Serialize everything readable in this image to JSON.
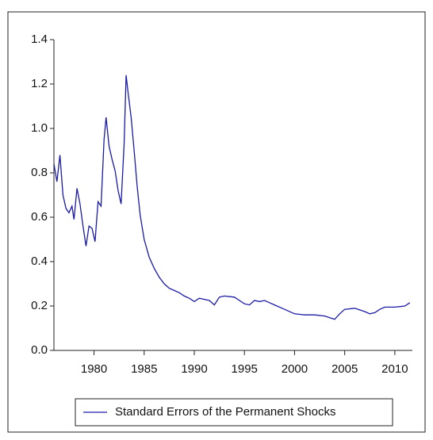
{
  "chart_data": {
    "type": "line",
    "x": [
      1976.0,
      1976.3,
      1976.6,
      1976.9,
      1977.2,
      1977.5,
      1977.8,
      1978.0,
      1978.3,
      1978.6,
      1978.9,
      1979.2,
      1979.5,
      1979.8,
      1980.1,
      1980.4,
      1980.7,
      1981.0,
      1981.2,
      1981.5,
      1981.8,
      1982.1,
      1982.4,
      1982.7,
      1983.0,
      1983.2,
      1983.4,
      1983.7,
      1984.0,
      1984.3,
      1984.6,
      1985.0,
      1985.5,
      1986.0,
      1986.5,
      1987.0,
      1987.5,
      1988.0,
      1988.5,
      1989.0,
      1989.5,
      1990.0,
      1990.5,
      1991.0,
      1991.5,
      1992.0,
      1992.5,
      1993.0,
      1994.0,
      1994.5,
      1995.0,
      1995.5,
      1996.0,
      1996.5,
      1997.0,
      1997.5,
      1998.0,
      1999.0,
      2000.0,
      2001.0,
      2002.0,
      2003.0,
      2004.0,
      2004.5,
      2005.0,
      2006.0,
      2007.0,
      2007.5,
      2008.0,
      2008.5,
      2009.0,
      2010.0,
      2011.0,
      2011.5
    ],
    "series": [
      {
        "name": "Standard Errors of the Permanent Shocks",
        "color": "#1a1aa6",
        "values": [
          0.84,
          0.76,
          0.88,
          0.7,
          0.64,
          0.62,
          0.65,
          0.59,
          0.73,
          0.66,
          0.56,
          0.47,
          0.56,
          0.55,
          0.49,
          0.67,
          0.65,
          0.95,
          1.05,
          0.92,
          0.86,
          0.81,
          0.72,
          0.66,
          0.93,
          1.24,
          1.16,
          1.05,
          0.9,
          0.74,
          0.61,
          0.5,
          0.42,
          0.37,
          0.33,
          0.3,
          0.28,
          0.27,
          0.26,
          0.245,
          0.235,
          0.22,
          0.235,
          0.23,
          0.225,
          0.205,
          0.24,
          0.245,
          0.24,
          0.225,
          0.21,
          0.205,
          0.225,
          0.22,
          0.225,
          0.215,
          0.205,
          0.185,
          0.165,
          0.16,
          0.16,
          0.155,
          0.14,
          0.165,
          0.185,
          0.19,
          0.175,
          0.165,
          0.17,
          0.185,
          0.195,
          0.195,
          0.2,
          0.215
        ]
      }
    ],
    "xlim": [
      1976,
      2011.75
    ],
    "xticks": [
      1980,
      1985,
      1990,
      1995,
      2000,
      2005,
      2010
    ],
    "ylim": [
      0,
      1.4
    ],
    "yticks": [
      {
        "value": 0,
        "label": "0.0"
      },
      0.2,
      0.4,
      0.6,
      0.8,
      {
        "value": 1,
        "label": "1.0"
      },
      1.2,
      1.4
    ]
  }
}
